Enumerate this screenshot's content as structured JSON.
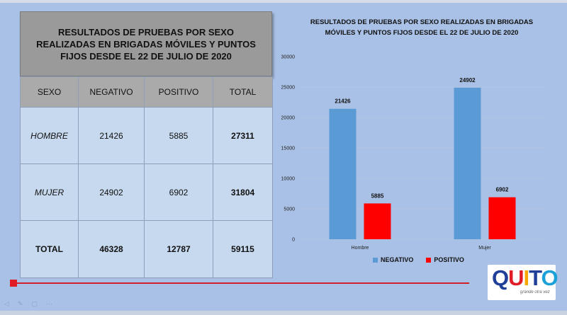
{
  "table": {
    "title": "RESULTADOS DE PRUEBAS POR SEXO REALIZADAS EN BRIGADAS MÓVILES Y PUNTOS FIJOS DESDE EL 22 DE JULIO DE 2020",
    "headers": [
      "SEXO",
      "NEGATIVO",
      "POSITIVO",
      "TOTAL"
    ],
    "rows": [
      {
        "sexo": "HOMBRE",
        "negativo": "21426",
        "positivo": "5885",
        "total": "27311"
      },
      {
        "sexo": "MUJER",
        "negativo": "24902",
        "positivo": "6902",
        "total": "31804"
      },
      {
        "sexo": "TOTAL",
        "negativo": "46328",
        "positivo": "12787",
        "total": "59115"
      }
    ]
  },
  "chart_data": {
    "type": "bar",
    "title": "RESULTADOS DE PRUEBAS POR SEXO REALIZADAS EN BRIGADAS MÓVILES Y PUNTOS FIJOS DESDE EL 22 DE JULIO DE 2020",
    "categories": [
      "Hombre",
      "Mujer"
    ],
    "series": [
      {
        "name": "NEGATIVO",
        "values": [
          21426,
          24902
        ],
        "color": "#5b9bd5"
      },
      {
        "name": "POSITIVO",
        "values": [
          5885,
          6902
        ],
        "color": "#ff0000"
      }
    ],
    "ylim": [
      0,
      30000
    ],
    "yticks": [
      "0",
      "5000",
      "10000",
      "15000",
      "20000",
      "25000",
      "30000"
    ],
    "grid": true,
    "legend": "bottom"
  },
  "player": {
    "progress": 0.0
  },
  "logo": {
    "text": "QUITO",
    "tagline": "grande otra vez",
    "colors": [
      "#1f3f99",
      "#e21c24",
      "#f6a800",
      "#1f3f99",
      "#19a1d8"
    ]
  }
}
